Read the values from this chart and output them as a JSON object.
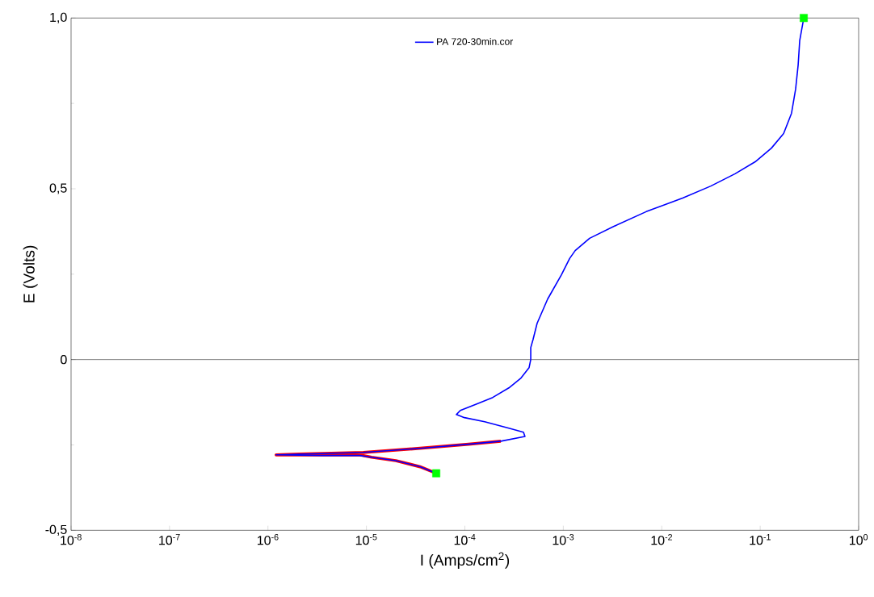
{
  "chart_data": {
    "type": "line",
    "xlabel": "I (Amps/cm$^{2}$)",
    "ylabel": "E (Volts)",
    "log": "x",
    "xlim": [
      1e-08,
      1
    ],
    "ylim": [
      -0.5,
      1.0
    ],
    "xticks": [
      {
        "value": 1e-08,
        "label": "10$^{-8}$"
      },
      {
        "value": 1e-07,
        "label": "10$^{-7}$"
      },
      {
        "value": 1e-06,
        "label": "10$^{-6}$"
      },
      {
        "value": 1e-05,
        "label": "10$^{-5}$"
      },
      {
        "value": 0.0001,
        "label": "10$^{-4}$"
      },
      {
        "value": 0.001,
        "label": "10$^{-3}$"
      },
      {
        "value": 0.01,
        "label": "10$^{-2}$"
      },
      {
        "value": 0.1,
        "label": "10$^{-1}$"
      },
      {
        "value": 1,
        "label": "10$^{0}$"
      }
    ],
    "yticks": [
      {
        "value": -0.5,
        "label": "-0,5"
      },
      0,
      {
        "value": 0.5,
        "label": "0,5"
      },
      {
        "value": 1.0,
        "label": "1,0"
      }
    ],
    "grid": false,
    "legend": "top",
    "marker": "none",
    "line_style": "solid",
    "ref_lines": [
      {
        "axis": "y",
        "value": 0,
        "color": "#000000"
      }
    ],
    "series": [
      {
        "type": "scatter",
        "marker": "square",
        "color": "#00ff00",
        "x": [
          5.12e-05,
          0.277
        ],
        "values": [
          -0.333,
          1.0
        ]
      },
      {
        "color": "#ff0000",
        "x": [
          5.12e-05,
          3.51e-05,
          1.99e-05,
          1.13e-05,
          8.5e-06,
          3.6e-06,
          1.21e-06,
          2.06e-06,
          9.3e-06,
          3.51e-05,
          0.000109,
          0.000232
        ],
        "values": [
          -0.333,
          -0.314,
          -0.296,
          -0.286,
          -0.279,
          -0.279,
          -0.279,
          -0.277,
          -0.272,
          -0.26,
          -0.248,
          -0.239
        ]
      },
      {
        "name": "PA 720-30min.cor",
        "color": "#0000ff",
        "x": [
          5.12e-05,
          3.51e-05,
          1.99e-05,
          1.13e-05,
          8.5e-06,
          3.6e-06,
          1.21e-06,
          2.06e-06,
          9.3e-06,
          3.51e-05,
          0.000109,
          0.000232,
          0.000408,
          0.000394,
          0.00028,
          0.000159,
          9.9e-05,
          8.2e-05,
          9e-05,
          0.000132,
          0.000192,
          0.00028,
          0.000372,
          0.000449,
          0.000467,
          0.000467,
          0.000493,
          0.000542,
          0.000693,
          0.000957,
          0.00116,
          0.00132,
          0.00185,
          0.00327,
          0.00695,
          0.0163,
          0.0315,
          0.0556,
          0.089,
          0.13,
          0.173,
          0.208,
          0.229,
          0.243,
          0.252,
          0.277
        ],
        "values": [
          -0.333,
          -0.314,
          -0.296,
          -0.286,
          -0.281,
          -0.281,
          -0.279,
          -0.277,
          -0.272,
          -0.26,
          -0.248,
          -0.239,
          -0.225,
          -0.213,
          -0.201,
          -0.182,
          -0.17,
          -0.161,
          -0.149,
          -0.13,
          -0.111,
          -0.083,
          -0.054,
          -0.024,
          0,
          0.035,
          0.059,
          0.106,
          0.177,
          0.248,
          0.296,
          0.319,
          0.355,
          0.39,
          0.433,
          0.473,
          0.508,
          0.544,
          0.579,
          0.619,
          0.662,
          0.721,
          0.792,
          0.863,
          0.934,
          1.0
        ]
      }
    ]
  }
}
